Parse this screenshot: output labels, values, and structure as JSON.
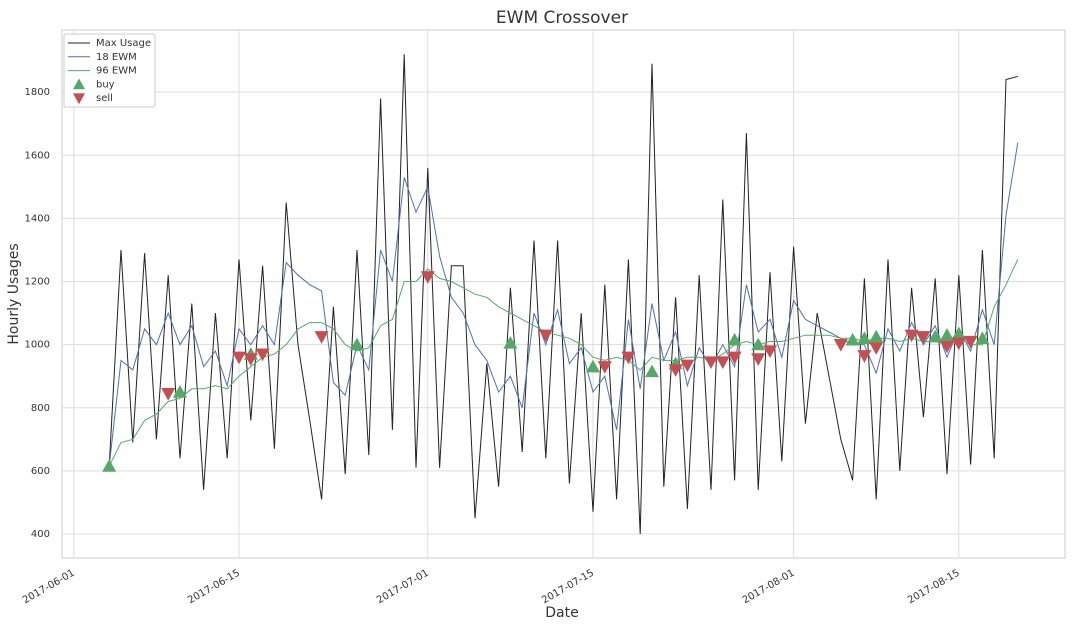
{
  "chart_data": {
    "type": "line",
    "title": "EWM Crossover",
    "x_label": "Date",
    "y_label": "Hourly Usages",
    "grid": true,
    "legend": "upper left",
    "xlim": [
      "2017-05-31",
      "2017-08-24"
    ],
    "xticks": [
      "2017-06-01",
      "2017-06-15",
      "2017-07-01",
      "2017-07-15",
      "2017-08-01",
      "2017-08-15"
    ],
    "ylim": [
      324,
      1997
    ],
    "yticks": [
      400,
      600,
      800,
      1000,
      1200,
      1400,
      1600,
      1800
    ],
    "x": [
      "2017-06-04",
      "2017-06-05",
      "2017-06-06",
      "2017-06-07",
      "2017-06-08",
      "2017-06-09",
      "2017-06-10",
      "2017-06-11",
      "2017-06-12",
      "2017-06-13",
      "2017-06-14",
      "2017-06-15",
      "2017-06-16",
      "2017-06-17",
      "2017-06-18",
      "2017-06-19",
      "2017-06-20",
      "2017-06-21",
      "2017-06-22",
      "2017-06-23",
      "2017-06-24",
      "2017-06-25",
      "2017-06-26",
      "2017-06-27",
      "2017-06-28",
      "2017-06-29",
      "2017-06-30",
      "2017-07-01",
      "2017-07-02",
      "2017-07-03",
      "2017-07-04",
      "2017-07-05",
      "2017-07-06",
      "2017-07-07",
      "2017-07-08",
      "2017-07-09",
      "2017-07-10",
      "2017-07-11",
      "2017-07-12",
      "2017-07-13",
      "2017-07-14",
      "2017-07-15",
      "2017-07-16",
      "2017-07-17",
      "2017-07-18",
      "2017-07-19",
      "2017-07-20",
      "2017-07-21",
      "2017-07-22",
      "2017-07-23",
      "2017-07-24",
      "2017-07-25",
      "2017-07-26",
      "2017-07-27",
      "2017-07-28",
      "2017-07-29",
      "2017-07-30",
      "2017-07-31",
      "2017-08-01",
      "2017-08-02",
      "2017-08-03",
      "2017-08-04",
      "2017-08-05",
      "2017-08-06",
      "2017-08-07",
      "2017-08-08",
      "2017-08-09",
      "2017-08-10",
      "2017-08-11",
      "2017-08-12",
      "2017-08-13",
      "2017-08-14",
      "2017-08-15",
      "2017-08-16",
      "2017-08-17",
      "2017-08-18",
      "2017-08-19",
      "2017-08-20"
    ],
    "series": [
      {
        "name": "Max Usage",
        "color": "#222222",
        "values": [
          615,
          1300,
          690,
          1290,
          700,
          1220,
          640,
          1130,
          540,
          1100,
          640,
          1270,
          760,
          1250,
          670,
          1450,
          1000,
          760,
          510,
          1120,
          590,
          1300,
          650,
          1780,
          730,
          1920,
          610,
          1560,
          610,
          1250,
          1250,
          450,
          940,
          550,
          1180,
          660,
          1330,
          640,
          1330,
          560,
          1100,
          470,
          1190,
          510,
          1270,
          400,
          1890,
          550,
          1150,
          480,
          1220,
          540,
          1460,
          570,
          1670,
          540,
          1230,
          630,
          1310,
          750,
          1100,
          900,
          700,
          570,
          1210,
          510,
          1270,
          600,
          1180,
          770,
          1210,
          590,
          1220,
          620,
          1300,
          640,
          1840,
          1850
        ]
      },
      {
        "name": "18 EWM",
        "color": "#4c72b0",
        "values": [
          615,
          950,
          920,
          1050,
          1000,
          1100,
          1000,
          1060,
          930,
          980,
          870,
          1050,
          1000,
          1060,
          1000,
          1260,
          1220,
          1190,
          1170,
          880,
          840,
          1000,
          920,
          1300,
          1200,
          1530,
          1420,
          1500,
          1280,
          1150,
          1100,
          1000,
          950,
          850,
          900,
          800,
          1100,
          1000,
          1110,
          940,
          990,
          850,
          900,
          730,
          1080,
          860,
          1130,
          950,
          1040,
          870,
          990,
          930,
          1000,
          930,
          1190,
          1040,
          1080,
          960,
          1140,
          1080,
          1060,
          1040,
          1020,
          1000,
          1000,
          910,
          1050,
          980,
          1070,
          1000,
          1060,
          960,
          1050,
          980,
          1110,
          1000,
          1410,
          1640
        ]
      },
      {
        "name": "96 EWM",
        "color": "#55a868",
        "values": [
          615,
          690,
          700,
          760,
          780,
          820,
          830,
          860,
          860,
          870,
          860,
          900,
          930,
          960,
          970,
          1000,
          1050,
          1070,
          1070,
          1050,
          1000,
          980,
          990,
          1060,
          1080,
          1200,
          1200,
          1240,
          1210,
          1200,
          1180,
          1160,
          1150,
          1120,
          1100,
          1080,
          1060,
          1040,
          1030,
          1020,
          1000,
          960,
          950,
          960,
          950,
          920,
          960,
          950,
          950,
          960,
          960,
          950,
          970,
          1000,
          1010,
          1000,
          1010,
          1010,
          1020,
          1030,
          1030,
          1030,
          1020,
          1020,
          1010,
          1020,
          1020,
          1010,
          1020,
          1010,
          1010,
          1000,
          1020,
          1000,
          1000,
          1120,
          1190,
          1270
        ]
      },
      {
        "name": "buy",
        "color": "#55a868",
        "marker": "triangle-up",
        "x": [
          "2017-06-04",
          "2017-06-10",
          "2017-06-16",
          "2017-06-25",
          "2017-07-08",
          "2017-07-15",
          "2017-07-20",
          "2017-07-22",
          "2017-07-27",
          "2017-07-29",
          "2017-08-06",
          "2017-08-07",
          "2017-08-08",
          "2017-08-13",
          "2017-08-14",
          "2017-08-15",
          "2017-08-17"
        ],
        "values": [
          615,
          850,
          970,
          1000,
          1005,
          930,
          915,
          940,
          1015,
          1000,
          1015,
          1020,
          1025,
          1025,
          1030,
          1035,
          1020
        ]
      },
      {
        "name": "sell",
        "color": "#c44e52",
        "marker": "triangle-down",
        "x": [
          "2017-06-09",
          "2017-06-15",
          "2017-06-16",
          "2017-06-17",
          "2017-06-22",
          "2017-07-01",
          "2017-07-11",
          "2017-07-16",
          "2017-07-18",
          "2017-07-22",
          "2017-07-23",
          "2017-07-25",
          "2017-07-26",
          "2017-07-27",
          "2017-07-29",
          "2017-07-30",
          "2017-08-05",
          "2017-08-07",
          "2017-08-08",
          "2017-08-11",
          "2017-08-12",
          "2017-08-14",
          "2017-08-15",
          "2017-08-16"
        ],
        "values": [
          845,
          960,
          955,
          970,
          1025,
          1215,
          1030,
          930,
          960,
          920,
          935,
          945,
          945,
          960,
          955,
          980,
          1000,
          965,
          990,
          1030,
          1025,
          995,
          1005,
          1010
        ]
      }
    ]
  }
}
